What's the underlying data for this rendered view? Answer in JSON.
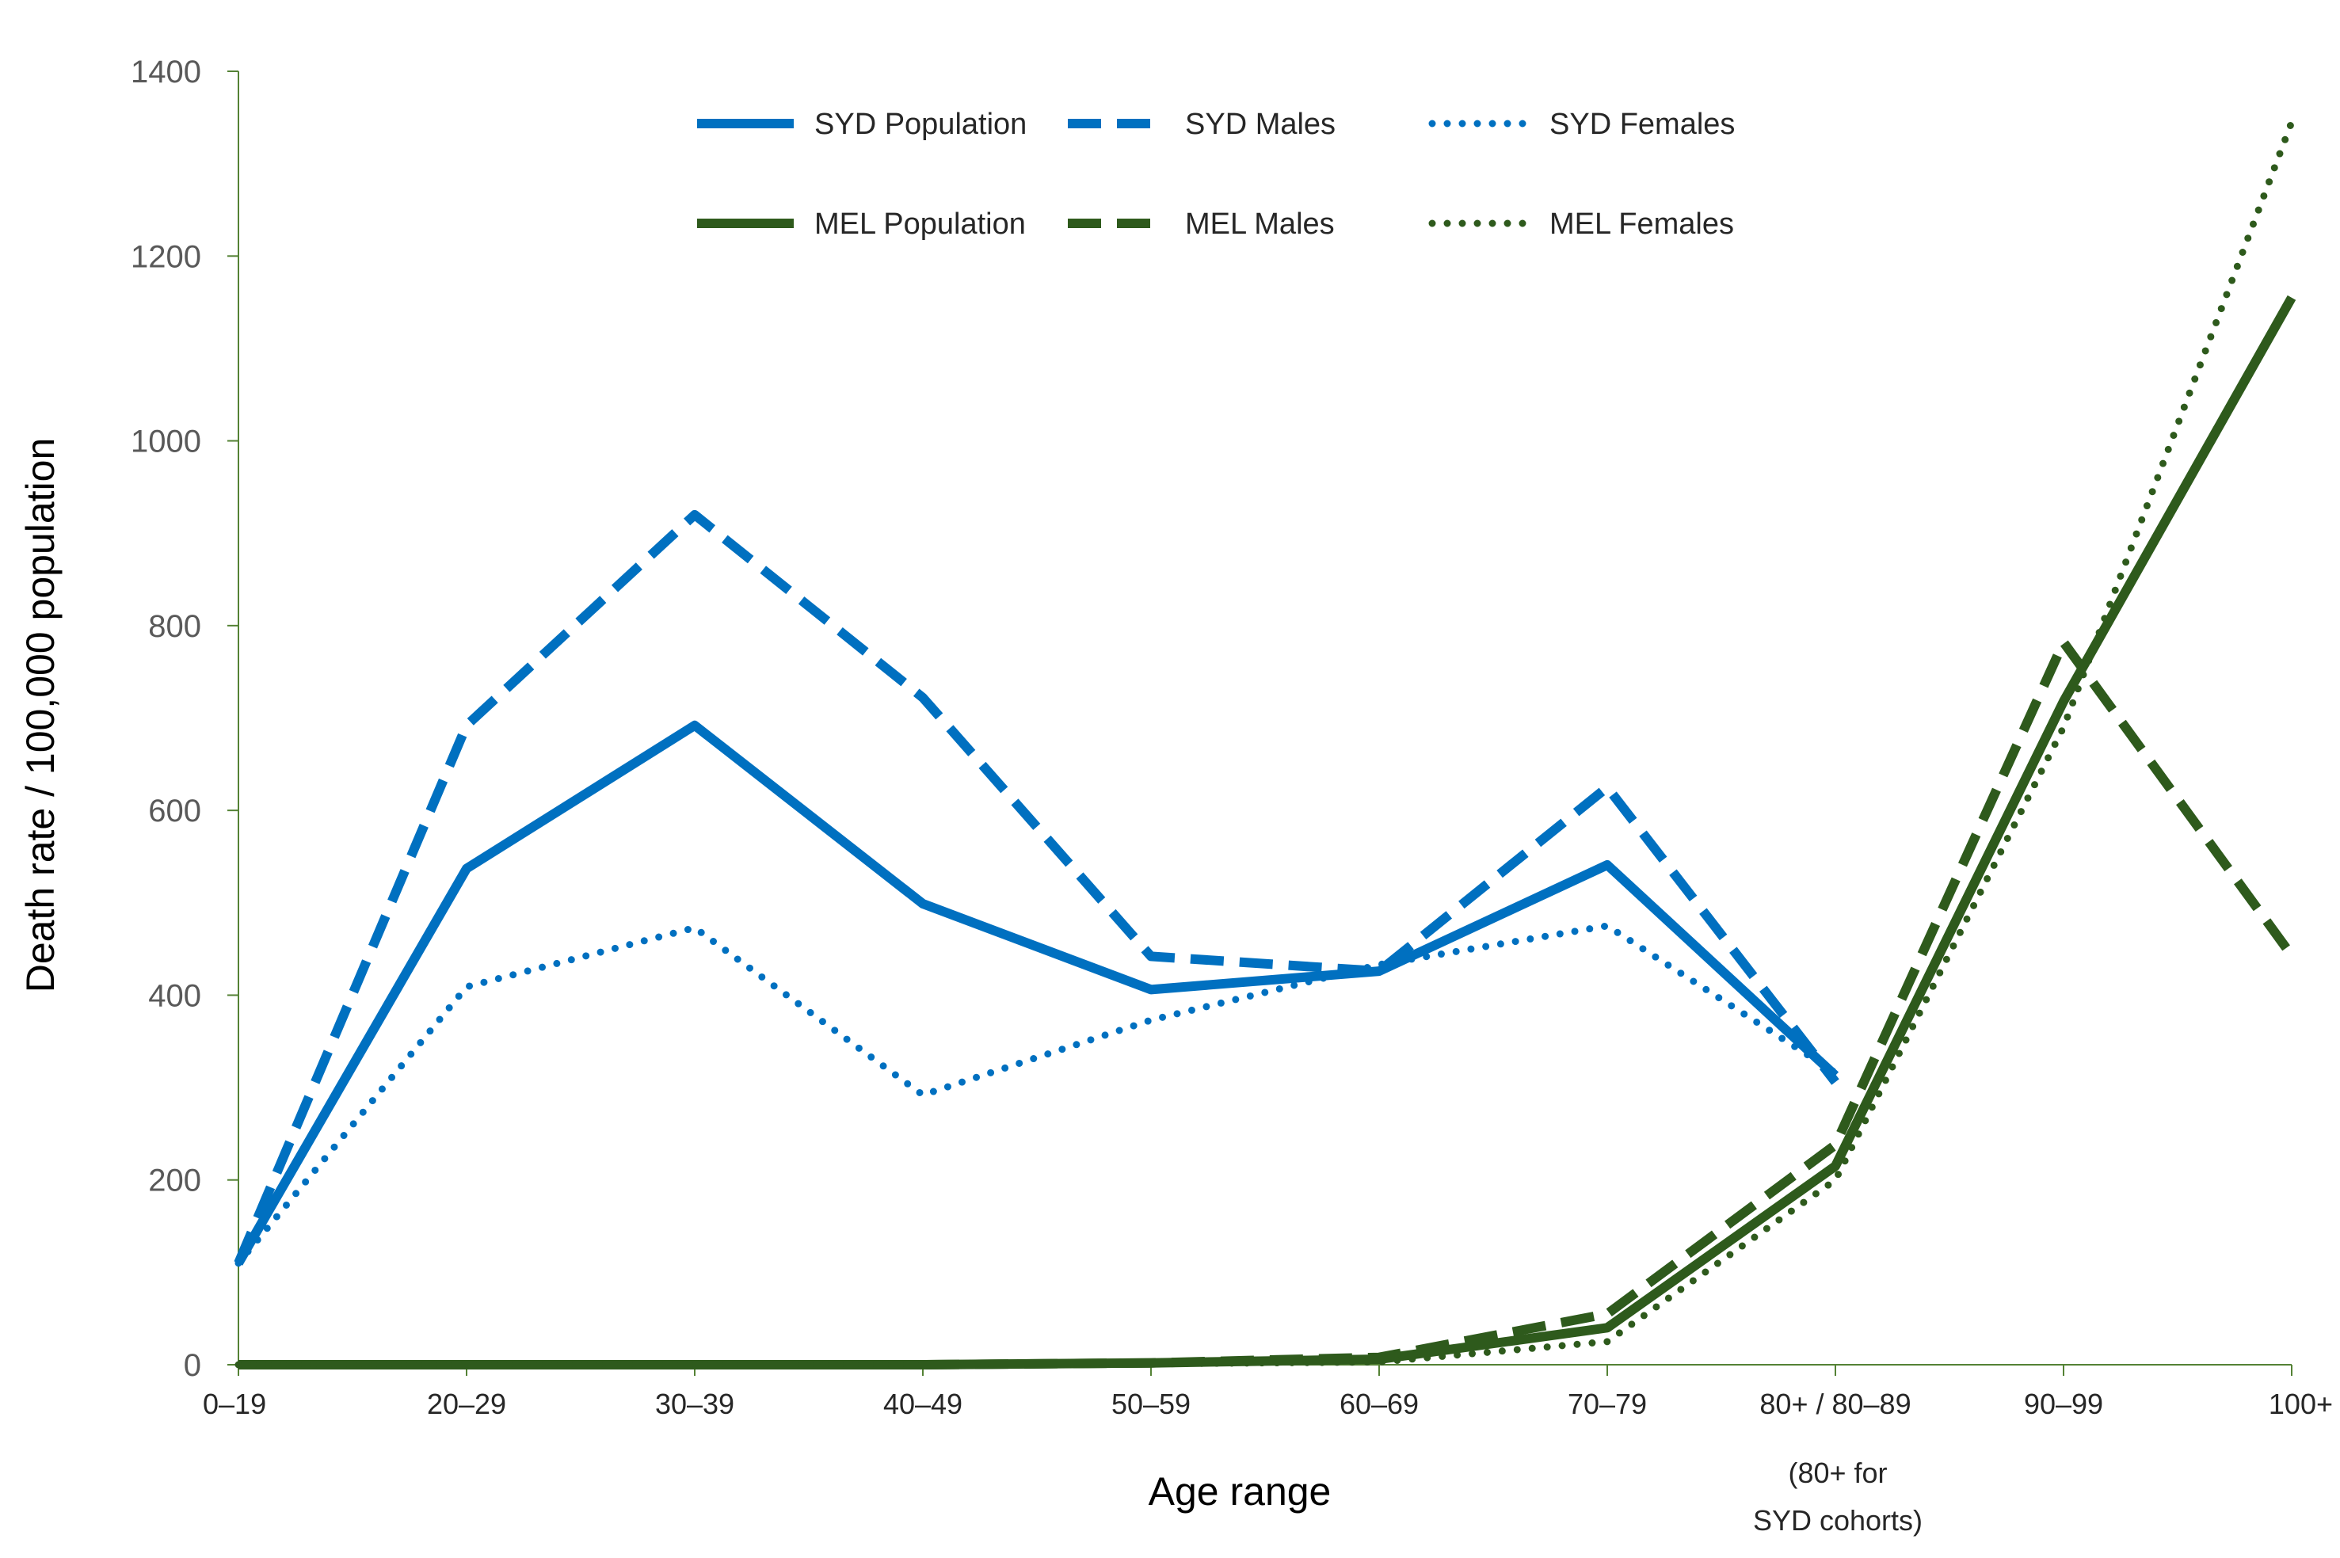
{
  "chart_data": {
    "type": "line",
    "title": "",
    "xlabel": "Age range",
    "ylabel": "Death rate / 100,000 population",
    "ylim": [
      0,
      1400
    ],
    "yticks": [
      0,
      200,
      400,
      600,
      800,
      1000,
      1200,
      1400
    ],
    "categories": [
      "0–19",
      "20–29",
      "30–39",
      "40–49",
      "50–59",
      "60–69",
      "70–79",
      "80+ / 80–89",
      "90–99",
      "100+"
    ],
    "category_note": [
      "(80+ for",
      "SYD cohorts)"
    ],
    "grid": false,
    "legend_position": "top-center",
    "colors": {
      "syd": "#0070C0",
      "mel": "#2E5A1C",
      "axis": "#548235",
      "tick_text": "#595959"
    },
    "series": [
      {
        "name": "SYD Population",
        "city": "syd",
        "style": "solid",
        "values": [
          110,
          537,
          692,
          499,
          406,
          426,
          541,
          313,
          null,
          null
        ]
      },
      {
        "name": "SYD Males",
        "city": "syd",
        "style": "dashed",
        "values": [
          110,
          692,
          920,
          722,
          442,
          426,
          625,
          306,
          null,
          null
        ]
      },
      {
        "name": "SYD Females",
        "city": "syd",
        "style": "dotted",
        "values": [
          110,
          409,
          473,
          292,
          373,
          433,
          475,
          316,
          null,
          null
        ]
      },
      {
        "name": "MEL Population",
        "city": "mel",
        "style": "solid",
        "values": [
          0,
          0,
          0,
          0,
          2,
          6,
          40,
          215,
          718,
          1155
        ]
      },
      {
        "name": "MEL Males",
        "city": "mel",
        "style": "dashed",
        "values": [
          0,
          0,
          0,
          0,
          2,
          8,
          55,
          238,
          782,
          443
        ]
      },
      {
        "name": "MEL Females",
        "city": "mel",
        "style": "dotted",
        "values": [
          0,
          0,
          0,
          0,
          1,
          3,
          25,
          200,
          690,
          1345
        ]
      }
    ]
  }
}
